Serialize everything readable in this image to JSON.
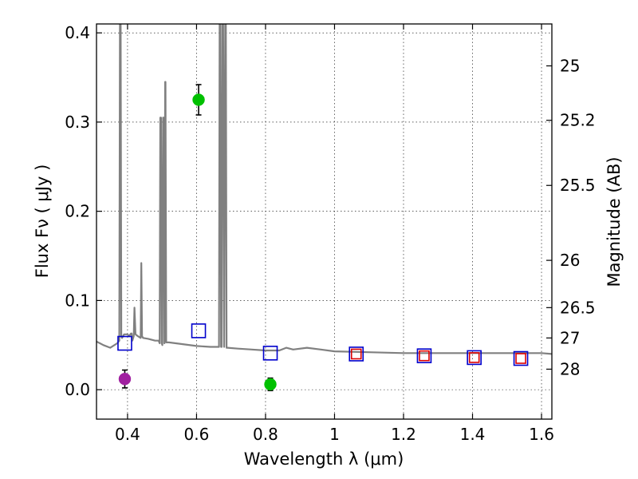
{
  "chart_data": {
    "type": "scatter",
    "xlabel": "Wavelength  λ (μm)",
    "ylabel": "Flux  Fν  ( μJy )",
    "ylabel_right": "Magnitude (AB)",
    "xlim": [
      0.31,
      1.63
    ],
    "ylim": [
      -0.033,
      0.41
    ],
    "xticks": [
      0.4,
      0.6,
      0.8,
      1.0,
      1.2,
      1.4,
      1.6
    ],
    "xtick_labels": [
      "0.4",
      "0.6",
      "0.8",
      "1",
      "1.2",
      "1.4",
      "1.6"
    ],
    "yticks": [
      0.0,
      0.1,
      0.2,
      0.3,
      0.4
    ],
    "ytick_labels": [
      "0.0",
      "0.1",
      "0.2",
      "0.3",
      "0.4"
    ],
    "right_ticks": [
      {
        "label": "25",
        "flux": 0.363
      },
      {
        "label": "25.2",
        "flux": 0.302
      },
      {
        "label": "25.5",
        "flux": 0.229
      },
      {
        "label": "26",
        "flux": 0.145
      },
      {
        "label": "26.5",
        "flux": 0.092
      },
      {
        "label": "27",
        "flux": 0.058
      },
      {
        "label": "28",
        "flux": 0.023
      }
    ],
    "grid": true,
    "series": [
      {
        "name": "model spectrum",
        "kind": "line",
        "color": "#808080",
        "x": [
          0.31,
          0.33,
          0.35,
          0.37,
          0.376,
          0.378,
          0.38,
          0.382,
          0.384,
          0.39,
          0.4,
          0.405,
          0.408,
          0.41,
          0.412,
          0.414,
          0.418,
          0.42,
          0.423,
          0.43,
          0.438,
          0.44,
          0.442,
          0.445,
          0.46,
          0.48,
          0.49,
          0.493,
          0.495,
          0.497,
          0.499,
          0.501,
          0.503,
          0.505,
          0.507,
          0.509,
          0.51,
          0.512,
          0.52,
          0.56,
          0.6,
          0.64,
          0.66,
          0.665,
          0.667,
          0.669,
          0.671,
          0.673,
          0.675,
          0.677,
          0.68,
          0.683,
          0.685,
          0.687,
          0.69,
          0.72,
          0.76,
          0.8,
          0.84,
          0.86,
          0.88,
          0.92,
          0.96,
          1.0,
          1.1,
          1.2,
          1.3,
          1.4,
          1.5,
          1.6,
          1.63
        ],
        "y": [
          0.054,
          0.05,
          0.047,
          0.052,
          0.055,
          0.41,
          0.41,
          0.06,
          0.058,
          0.062,
          0.062,
          0.06,
          0.062,
          0.063,
          0.063,
          0.055,
          0.06,
          0.092,
          0.062,
          0.06,
          0.058,
          0.142,
          0.06,
          0.058,
          0.057,
          0.055,
          0.055,
          0.052,
          0.305,
          0.305,
          0.052,
          0.05,
          0.305,
          0.305,
          0.052,
          0.345,
          0.345,
          0.053,
          0.053,
          0.051,
          0.049,
          0.048,
          0.048,
          0.048,
          0.41,
          0.41,
          0.048,
          0.048,
          0.41,
          0.41,
          0.048,
          0.41,
          0.41,
          0.047,
          0.047,
          0.046,
          0.045,
          0.044,
          0.044,
          0.047,
          0.045,
          0.047,
          0.045,
          0.043,
          0.042,
          0.041,
          0.041,
          0.041,
          0.041,
          0.041,
          0.04
        ]
      },
      {
        "name": "observed photometry (green)",
        "kind": "point",
        "color": "#00c000",
        "points": [
          {
            "x": 0.606,
            "y": 0.325,
            "err": 0.017
          },
          {
            "x": 0.814,
            "y": 0.006,
            "err": 0.007
          }
        ]
      },
      {
        "name": "observed photometry (magenta)",
        "kind": "point",
        "color": "#a020a0",
        "points": [
          {
            "x": 0.392,
            "y": 0.012,
            "err": 0.01
          }
        ]
      },
      {
        "name": "model photometry (blue squares)",
        "kind": "square",
        "color": "#0000cc",
        "points": [
          {
            "x": 0.392,
            "y": 0.052
          },
          {
            "x": 0.606,
            "y": 0.066
          },
          {
            "x": 0.814,
            "y": 0.041
          },
          {
            "x": 1.063,
            "y": 0.04
          },
          {
            "x": 1.26,
            "y": 0.038
          },
          {
            "x": 1.405,
            "y": 0.036
          },
          {
            "x": 1.54,
            "y": 0.035
          }
        ]
      },
      {
        "name": "model photometry (red squares)",
        "kind": "square-small",
        "color": "#dd0000",
        "points": [
          {
            "x": 1.063,
            "y": 0.04
          },
          {
            "x": 1.26,
            "y": 0.038
          },
          {
            "x": 1.405,
            "y": 0.036
          },
          {
            "x": 1.54,
            "y": 0.035
          }
        ]
      }
    ]
  }
}
